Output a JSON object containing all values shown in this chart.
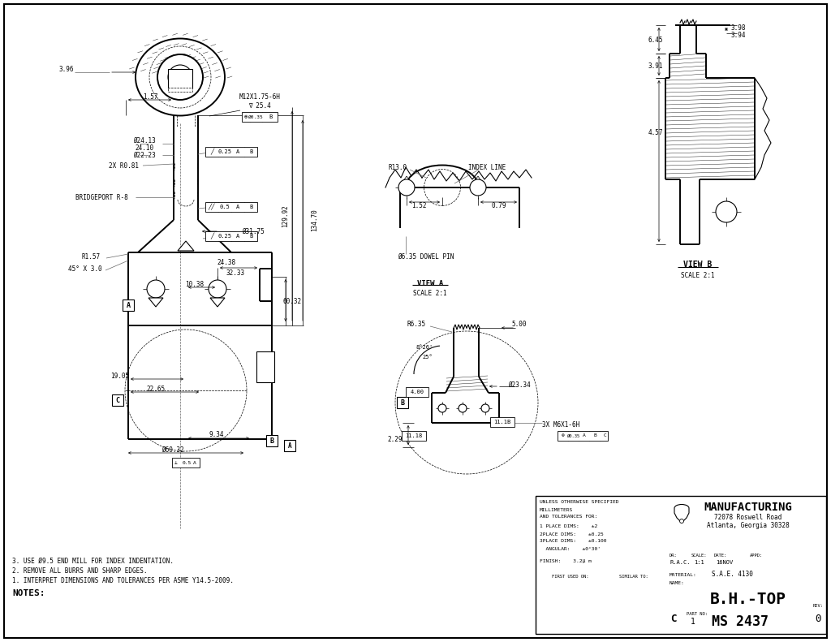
{
  "company": "MANUFACTURING",
  "address1": "72078 Roswell Road",
  "address2": "Atlanta, Georgia 30328",
  "part_no": "MS 2437",
  "rev": "0",
  "dr": "R.A.C.",
  "scale": "1:1",
  "date": "16NOV",
  "material": "S.A.E. 4130",
  "name": "B.H.-TOP",
  "notes": [
    "3. USE Ø9.5 END MILL FOR INDEX INDENTATION.",
    "2. REMOVE ALL BURRS AND SHARP EDGES.",
    "1. INTERPRET DIMENSIONS AND TOLERANCES PER ASME Y14.5-2009."
  ]
}
